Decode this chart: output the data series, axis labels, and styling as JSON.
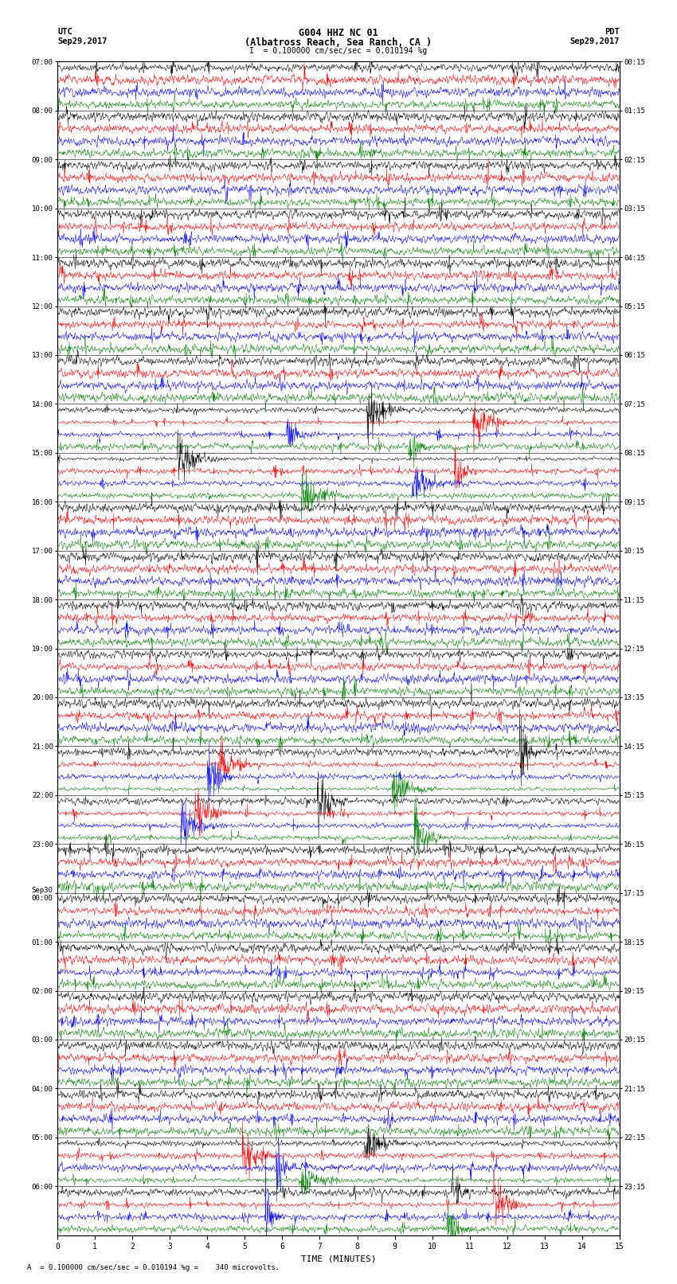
{
  "title_line1": "G004 HHZ NC 01",
  "title_line2": "(Albatross Reach, Sea Ranch, CA )",
  "scale_text": "I  = 0.100000 cm/sec/sec = 0.010194 %g",
  "footer_text": "A  = 0.100000 cm/sec/sec = 0.010194 %g =    340 microvolts.",
  "utc_label": "UTC",
  "pdt_label": "PDT",
  "date_left": "Sep29,2017",
  "date_right": "Sep29,2017",
  "xlabel": "TIME (MINUTES)",
  "time_axis_min": 0,
  "time_axis_max": 15,
  "time_ticks": [
    0,
    1,
    2,
    3,
    4,
    5,
    6,
    7,
    8,
    9,
    10,
    11,
    12,
    13,
    14,
    15
  ],
  "left_times": [
    "07:00",
    "08:00",
    "09:00",
    "10:00",
    "11:00",
    "12:00",
    "13:00",
    "14:00",
    "15:00",
    "16:00",
    "17:00",
    "18:00",
    "19:00",
    "20:00",
    "21:00",
    "22:00",
    "23:00",
    "Sep30\n00:00",
    "01:00",
    "02:00",
    "03:00",
    "04:00",
    "05:00",
    "06:00"
  ],
  "right_times": [
    "00:15",
    "01:15",
    "02:15",
    "03:15",
    "04:15",
    "05:15",
    "06:15",
    "07:15",
    "08:15",
    "09:15",
    "10:15",
    "11:15",
    "12:15",
    "13:15",
    "14:15",
    "15:15",
    "16:15",
    "17:15",
    "18:15",
    "19:15",
    "20:15",
    "21:15",
    "22:15",
    "23:15"
  ],
  "colors": [
    "black",
    "red",
    "blue",
    "green"
  ],
  "n_rows": 24,
  "traces_per_row": 4,
  "bg_color": "white",
  "noise_amplitude": 0.35,
  "seed": 42
}
